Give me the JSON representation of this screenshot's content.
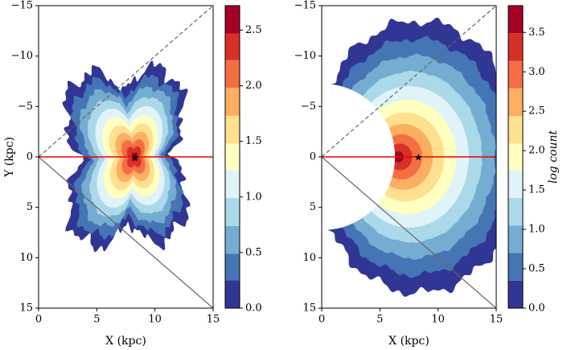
{
  "chart_data": [
    {
      "type": "contour",
      "xlabel": "X (kpc)",
      "ylabel": "Y (kpc)",
      "xlim": [
        0,
        15
      ],
      "ylim": [
        -15,
        15
      ],
      "xticks": [
        0,
        5,
        10,
        15
      ],
      "yticks": [
        {
          "value": -15,
          "label": "−15"
        },
        {
          "value": -10,
          "label": "−10"
        },
        {
          "value": -5,
          "label": "−5"
        },
        0,
        5,
        10,
        15
      ],
      "levels": [
        0,
        0.25,
        0.49,
        0.74,
        0.99,
        1.24,
        1.48,
        1.73,
        1.98,
        2.23,
        2.47,
        2.72
      ],
      "colors": [
        "#313695",
        "#4575b4",
        "#74add1",
        "#abd9e9",
        "#e0f3f8",
        "#ffffbf",
        "#fee090",
        "#fdae61",
        "#f46d43",
        "#d73027",
        "#a50026"
      ],
      "clim": [
        0,
        2.72
      ],
      "cticks": [
        {
          "value": 0,
          "label": "0.0"
        },
        {
          "value": 0.5,
          "label": "0.5"
        },
        {
          "value": 1,
          "label": "1.0"
        },
        {
          "value": 1.5,
          "label": "1.5"
        },
        {
          "value": 2,
          "label": "2.0"
        },
        {
          "value": 2.5,
          "label": "2.5"
        }
      ],
      "marker": {
        "x": 8.3,
        "y": 0
      }
    },
    {
      "type": "contour",
      "xlabel": "X (kpc)",
      "xlim": [
        0,
        15
      ],
      "ylim": [
        -15,
        15
      ],
      "xticks": [
        0,
        5,
        10,
        15
      ],
      "yticks": [
        {
          "value": -15,
          "label": "−15"
        },
        {
          "value": -10,
          "label": "−10"
        },
        {
          "value": -5,
          "label": "−5"
        },
        0,
        5,
        10,
        15
      ],
      "levels": [
        0,
        0.35,
        0.7,
        1.05,
        1.4,
        1.75,
        2.09,
        2.44,
        2.79,
        3.14,
        3.49,
        3.84
      ],
      "colors": [
        "#313695",
        "#4575b4",
        "#74add1",
        "#abd9e9",
        "#e0f3f8",
        "#ffffbf",
        "#fee090",
        "#fdae61",
        "#f46d43",
        "#d73027",
        "#a50026"
      ],
      "clim": [
        0,
        3.84
      ],
      "cticks": [
        {
          "value": 0,
          "label": "0.0"
        },
        {
          "value": 0.5,
          "label": "0.5"
        },
        {
          "value": 1,
          "label": "1.0"
        },
        {
          "value": 1.5,
          "label": "1.5"
        },
        {
          "value": 2,
          "label": "2.0"
        },
        {
          "value": 2.5,
          "label": "2.5"
        },
        {
          "value": 3,
          "label": "3.0"
        },
        {
          "value": 3.5,
          "label": "3.5"
        }
      ],
      "colorbar_label": "log count",
      "marker": {
        "x": 8.3,
        "y": 0
      }
    }
  ]
}
